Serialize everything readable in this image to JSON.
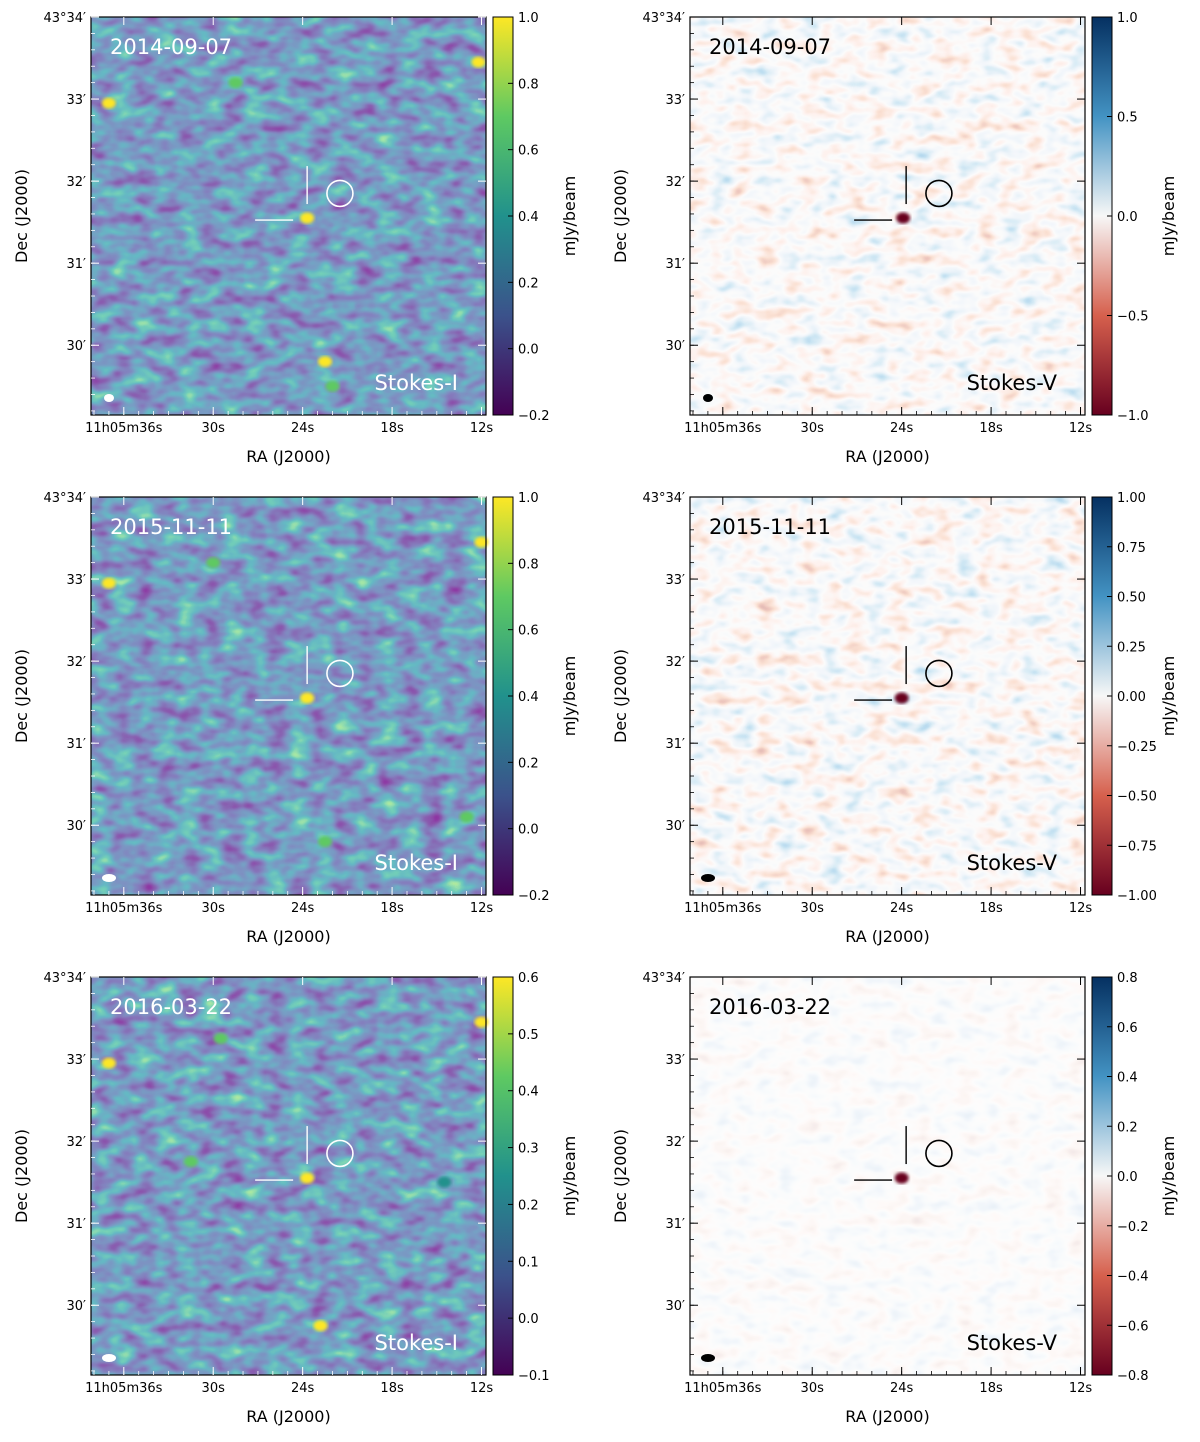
{
  "figure": {
    "xlabel": "RA (J2000)",
    "ylabel": "Dec (J2000)",
    "colorbar_label": "mJy/beam",
    "x_tick_labels": [
      {
        "label": "11h05m36s",
        "ra_sec": 36
      },
      {
        "label": "30s",
        "ra_sec": 30
      },
      {
        "label": "24s",
        "ra_sec": 24
      },
      {
        "label": "18s",
        "ra_sec": 18
      },
      {
        "label": "12s",
        "ra_sec": 12
      }
    ],
    "y_tick_labels": [
      {
        "label": "43°34′",
        "dec_arcmin": 34
      },
      {
        "label": "33′",
        "dec_arcmin": 33
      },
      {
        "label": "32′",
        "dec_arcmin": 32
      },
      {
        "label": "31′",
        "dec_arcmin": 31
      },
      {
        "label": "30′",
        "dec_arcmin": 30
      }
    ],
    "colormaps": {
      "stokes_i": [
        "#440154",
        "#3b528b",
        "#21918c",
        "#5ec962",
        "#fde725"
      ],
      "stokes_v": [
        "#67001f",
        "#d6604d",
        "#f7f7f7",
        "#4393c3",
        "#053061"
      ]
    }
  },
  "chart_data": [
    {
      "type": "heatmap",
      "date": "2014-09-07",
      "stokes": "Stokes-I",
      "colormap": "viridis",
      "vmin": -0.2,
      "vmax": 1.0,
      "colorbar_ticks": [
        "−0.2",
        "0.0",
        "0.2",
        "0.4",
        "0.6",
        "0.8",
        "1.0"
      ],
      "target_ra_sec": 23.7,
      "target_dec_arcmin": 31.55,
      "circle_ra_sec": 21.5,
      "circle_dec_arcmin": 31.85,
      "bright_sources": [
        {
          "ra_sec": 12.2,
          "dec_arcmin": 33.45,
          "flux": 1.0
        },
        {
          "ra_sec": 37.0,
          "dec_arcmin": 32.95,
          "flux": 0.95
        },
        {
          "ra_sec": 28.5,
          "dec_arcmin": 33.2,
          "flux": 0.8
        },
        {
          "ra_sec": 23.7,
          "dec_arcmin": 31.55,
          "flux": 1.0
        },
        {
          "ra_sec": 22.5,
          "dec_arcmin": 29.8,
          "flux": 0.85
        },
        {
          "ra_sec": 22.0,
          "dec_arcmin": 29.5,
          "flux": 0.7
        }
      ]
    },
    {
      "type": "heatmap",
      "date": "2014-09-07",
      "stokes": "Stokes-V",
      "colormap": "RdBu",
      "vmin": -1.2,
      "vmax": 1.2,
      "colorbar_ticks": [
        "−1.0",
        "−0.5",
        "0.0",
        "0.5",
        "1.0"
      ],
      "target_ra_sec": 23.7,
      "target_dec_arcmin": 31.55,
      "circle_ra_sec": 21.5,
      "circle_dec_arcmin": 31.85,
      "bright_sources": [
        {
          "ra_sec": 23.9,
          "dec_arcmin": 31.55,
          "flux": -1.1
        }
      ]
    },
    {
      "type": "heatmap",
      "date": "2015-11-11",
      "stokes": "Stokes-I",
      "colormap": "viridis",
      "vmin": -0.2,
      "vmax": 1.0,
      "colorbar_ticks": [
        "−0.2",
        "0.0",
        "0.2",
        "0.4",
        "0.6",
        "0.8",
        "1.0"
      ],
      "target_ra_sec": 23.7,
      "target_dec_arcmin": 31.55,
      "circle_ra_sec": 21.5,
      "circle_dec_arcmin": 31.85,
      "bright_sources": [
        {
          "ra_sec": 12.0,
          "dec_arcmin": 33.45,
          "flux": 1.0
        },
        {
          "ra_sec": 37.0,
          "dec_arcmin": 32.95,
          "flux": 1.0
        },
        {
          "ra_sec": 30.0,
          "dec_arcmin": 33.2,
          "flux": 0.75
        },
        {
          "ra_sec": 23.7,
          "dec_arcmin": 31.55,
          "flux": 0.85
        },
        {
          "ra_sec": 22.5,
          "dec_arcmin": 29.8,
          "flux": 0.8
        },
        {
          "ra_sec": 13.0,
          "dec_arcmin": 30.1,
          "flux": 0.6
        }
      ]
    },
    {
      "type": "heatmap",
      "date": "2015-11-11",
      "stokes": "Stokes-V",
      "colormap": "RdBu",
      "vmin": -1.0,
      "vmax": 1.0,
      "colorbar_ticks": [
        "−1.00",
        "−0.75",
        "−0.50",
        "−0.25",
        "0.00",
        "0.25",
        "0.50",
        "0.75",
        "1.00"
      ],
      "target_ra_sec": 23.7,
      "target_dec_arcmin": 31.55,
      "circle_ra_sec": 21.5,
      "circle_dec_arcmin": 31.85,
      "bright_sources": [
        {
          "ra_sec": 24.0,
          "dec_arcmin": 31.55,
          "flux": -0.95
        }
      ]
    },
    {
      "type": "heatmap",
      "date": "2016-03-22",
      "stokes": "Stokes-I",
      "colormap": "viridis",
      "vmin": -0.1,
      "vmax": 0.6,
      "colorbar_ticks": [
        "−0.1",
        "0.0",
        "0.1",
        "0.2",
        "0.3",
        "0.4",
        "0.5",
        "0.6"
      ],
      "target_ra_sec": 23.7,
      "target_dec_arcmin": 31.55,
      "circle_ra_sec": 21.5,
      "circle_dec_arcmin": 31.85,
      "bright_sources": [
        {
          "ra_sec": 12.0,
          "dec_arcmin": 33.45,
          "flux": 0.6
        },
        {
          "ra_sec": 37.0,
          "dec_arcmin": 32.95,
          "flux": 0.6
        },
        {
          "ra_sec": 29.5,
          "dec_arcmin": 33.25,
          "flux": 0.45
        },
        {
          "ra_sec": 23.7,
          "dec_arcmin": 31.55,
          "flux": 0.55
        },
        {
          "ra_sec": 22.8,
          "dec_arcmin": 29.75,
          "flux": 0.6
        },
        {
          "ra_sec": 31.5,
          "dec_arcmin": 31.75,
          "flux": 0.35
        },
        {
          "ra_sec": 14.5,
          "dec_arcmin": 31.5,
          "flux": 0.3
        }
      ]
    },
    {
      "type": "heatmap",
      "date": "2016-03-22",
      "stokes": "Stokes-V",
      "colormap": "RdBu",
      "vmin": -0.8,
      "vmax": 0.8,
      "colorbar_ticks": [
        "−0.8",
        "−0.6",
        "−0.4",
        "−0.2",
        "0.0",
        "0.2",
        "0.4",
        "0.6",
        "0.8"
      ],
      "target_ra_sec": 23.7,
      "target_dec_arcmin": 31.55,
      "circle_ra_sec": 21.5,
      "circle_dec_arcmin": 31.85,
      "bright_sources": [
        {
          "ra_sec": 24.0,
          "dec_arcmin": 31.55,
          "flux": -0.75
        }
      ]
    }
  ]
}
